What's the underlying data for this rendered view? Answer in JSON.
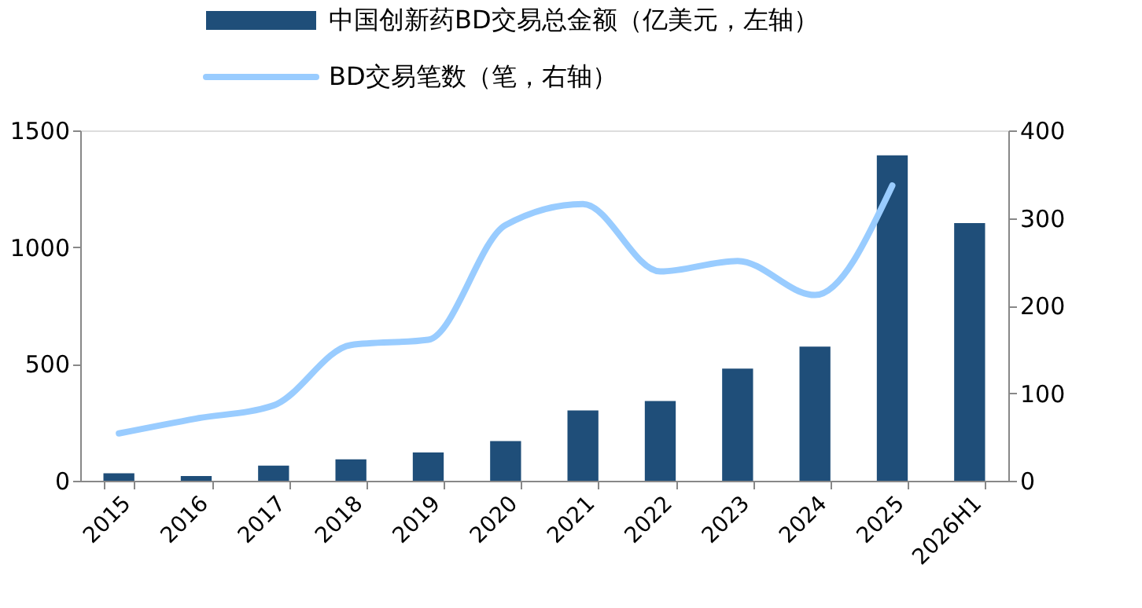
{
  "chart_data": {
    "type": "bar",
    "categories": [
      "2015",
      "2016",
      "2017",
      "2018",
      "2019",
      "2020",
      "2021",
      "2022",
      "2023",
      "2024",
      "2025",
      "2026H1"
    ],
    "series": [
      {
        "name": "中国创新药BD交易总金额（亿美元，左轴）",
        "color": "#1f4e79",
        "values": [
          32,
          20,
          65,
          92,
          121,
          170,
          301,
          341,
          480,
          574,
          1393,
          1103
        ]
      },
      {
        "name": "BD交易笔数（笔，右轴）",
        "type": "line",
        "axis": "y2",
        "color": "#99ccff",
        "values": [
          54,
          71,
          86,
          155,
          161,
          292,
          316,
          239,
          251,
          212,
          337,
          null
        ]
      }
    ],
    "ylim": [
      0,
      1500
    ],
    "yticks": [
      0,
      500,
      1000,
      1500
    ],
    "y2lim": [
      0,
      400
    ],
    "y2ticks": [
      0,
      100,
      200,
      300,
      400
    ],
    "legend": "top",
    "grid": false
  }
}
